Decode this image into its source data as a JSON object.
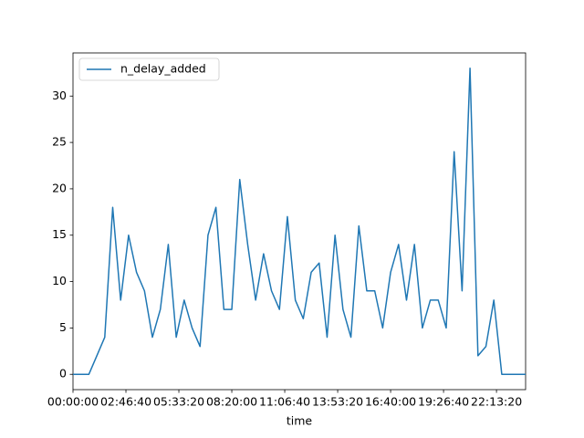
{
  "chart_data": {
    "type": "line",
    "xlabel": "time",
    "x": [
      0,
      1500,
      3000,
      4500,
      6000,
      7500,
      9000,
      10500,
      12000,
      13500,
      15000,
      16500,
      18000,
      19500,
      21000,
      22500,
      24000,
      25500,
      27000,
      28500,
      30000,
      31500,
      33000,
      34500,
      36000,
      37500,
      39000,
      40500,
      42000,
      43500,
      45000,
      46500,
      48000,
      49500,
      51000,
      52500,
      54000,
      55500,
      57000,
      58500,
      60000,
      61500,
      63000,
      64500,
      66000,
      67500,
      69000,
      70500,
      72000,
      73500,
      75000,
      76500,
      78000,
      79500,
      81000,
      82500,
      84000,
      85500
    ],
    "series": [
      {
        "name": "n_delay_added",
        "color": "#1f77b4",
        "values": [
          0,
          0,
          0,
          2,
          4,
          18,
          8,
          15,
          11,
          9,
          4,
          7,
          14,
          4,
          8,
          5,
          3,
          15,
          18,
          7,
          7,
          21,
          14,
          8,
          13,
          9,
          7,
          17,
          8,
          6,
          11,
          12,
          4,
          15,
          7,
          4,
          16,
          9,
          9,
          5,
          11,
          14,
          8,
          14,
          5,
          8,
          8,
          5,
          24,
          9,
          33,
          2,
          3,
          8,
          0,
          0,
          0,
          0
        ]
      }
    ],
    "xlim": [
      0,
      85500
    ],
    "xticks": [
      {
        "value": 0,
        "label": "00:00:00"
      },
      {
        "value": 10000,
        "label": "02:46:40"
      },
      {
        "value": 20000,
        "label": "05:33:20"
      },
      {
        "value": 30000,
        "label": "08:20:00"
      },
      {
        "value": 40000,
        "label": "11:06:40"
      },
      {
        "value": 50000,
        "label": "13:53:20"
      },
      {
        "value": 60000,
        "label": "16:40:00"
      },
      {
        "value": 70000,
        "label": "19:26:40"
      },
      {
        "value": 80000,
        "label": "22:13:20"
      }
    ],
    "ylim": [
      -1.65,
      34.65
    ],
    "yticks": [
      0,
      5,
      10,
      15,
      20,
      25,
      30
    ],
    "legend": "upper left"
  }
}
